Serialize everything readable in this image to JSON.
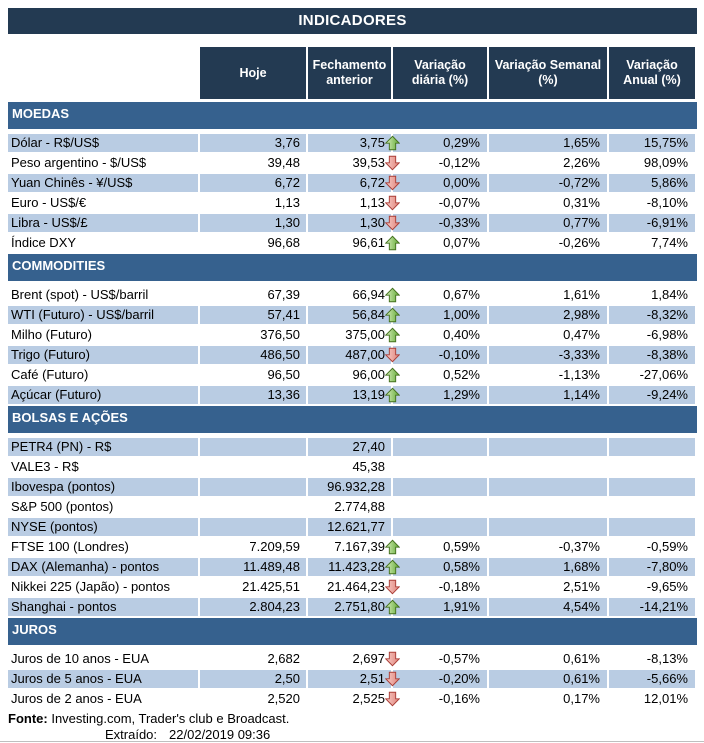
{
  "title": "INDICADORES",
  "columns": [
    "Hoje",
    "Fechamento anterior",
    "Variação diária (%)",
    "Variação Semanal (%)",
    "Variação Anual (%)"
  ],
  "colors": {
    "navy": "#233a52",
    "band": "#36618e",
    "row_light": "#b9cce3",
    "arrow_up_fill": "#8cc63e",
    "arrow_up_stroke": "#44711f",
    "arrow_down_fill": "#efa49d",
    "arrow_down_stroke": "#a93d36"
  },
  "sections": [
    {
      "name": "MOEDAS",
      "first_row_shaded": true,
      "rows": [
        {
          "label": "Dólar - R$/US$",
          "hoje": "3,76",
          "fechamento": "3,75",
          "arrow": "up",
          "var_diaria": "0,29%",
          "var_semanal": "1,65%",
          "var_anual": "15,75%"
        },
        {
          "label": "Peso argentino - $/US$",
          "hoje": "39,48",
          "fechamento": "39,53",
          "arrow": "down",
          "var_diaria": "-0,12%",
          "var_semanal": "2,26%",
          "var_anual": "98,09%"
        },
        {
          "label": "Yuan Chinês - ¥/US$",
          "hoje": "6,72",
          "fechamento": "6,72",
          "arrow": "down",
          "var_diaria": "0,00%",
          "var_semanal": "-0,72%",
          "var_anual": "5,86%"
        },
        {
          "label": "Euro - US$/€",
          "hoje": "1,13",
          "fechamento": "1,13",
          "arrow": "down",
          "var_diaria": "-0,07%",
          "var_semanal": "0,31%",
          "var_anual": "-8,10%"
        },
        {
          "label": "Libra - US$/£",
          "hoje": "1,30",
          "fechamento": "1,30",
          "arrow": "down",
          "var_diaria": "-0,33%",
          "var_semanal": "0,77%",
          "var_anual": "-6,91%"
        },
        {
          "label": "Índice DXY",
          "hoje": "96,68",
          "fechamento": "96,61",
          "arrow": "up",
          "var_diaria": "0,07%",
          "var_semanal": "-0,26%",
          "var_anual": "7,74%"
        }
      ]
    },
    {
      "name": "COMMODITIES",
      "first_row_shaded": false,
      "rows": [
        {
          "label": "Brent (spot) - US$/barril",
          "hoje": "67,39",
          "fechamento": "66,94",
          "arrow": "up",
          "var_diaria": "0,67%",
          "var_semanal": "1,61%",
          "var_anual": "1,84%"
        },
        {
          "label": "WTI (Futuro) - US$/barril",
          "hoje": "57,41",
          "fechamento": "56,84",
          "arrow": "up",
          "var_diaria": "1,00%",
          "var_semanal": "2,98%",
          "var_anual": "-8,32%"
        },
        {
          "label": "Milho (Futuro)",
          "hoje": "376,50",
          "fechamento": "375,00",
          "arrow": "up",
          "var_diaria": "0,40%",
          "var_semanal": "0,47%",
          "var_anual": "-6,98%"
        },
        {
          "label": "Trigo (Futuro)",
          "hoje": "486,50",
          "fechamento": "487,00",
          "arrow": "down",
          "var_diaria": "-0,10%",
          "var_semanal": "-3,33%",
          "var_anual": "-8,38%"
        },
        {
          "label": "Café (Futuro)",
          "hoje": "96,50",
          "fechamento": "96,00",
          "arrow": "up",
          "var_diaria": "0,52%",
          "var_semanal": "-1,13%",
          "var_anual": "-27,06%"
        },
        {
          "label": "Açúcar (Futuro)",
          "hoje": "13,36",
          "fechamento": "13,19",
          "arrow": "up",
          "var_diaria": "1,29%",
          "var_semanal": "1,14%",
          "var_anual": "-9,24%"
        }
      ]
    },
    {
      "name": "BOLSAS E AÇÕES",
      "first_row_shaded": true,
      "rows": [
        {
          "label": "PETR4 (PN) - R$",
          "hoje": "",
          "fechamento": "27,40",
          "arrow": null,
          "var_diaria": "",
          "var_semanal": "",
          "var_anual": ""
        },
        {
          "label": "VALE3 - R$",
          "hoje": "",
          "fechamento": "45,38",
          "arrow": null,
          "var_diaria": "",
          "var_semanal": "",
          "var_anual": ""
        },
        {
          "label": "Ibovespa (pontos)",
          "hoje": "",
          "fechamento": "96.932,28",
          "arrow": null,
          "var_diaria": "",
          "var_semanal": "",
          "var_anual": ""
        },
        {
          "label": "S&P 500 (pontos)",
          "hoje": "",
          "fechamento": "2.774,88",
          "arrow": null,
          "var_diaria": "",
          "var_semanal": "",
          "var_anual": ""
        },
        {
          "label": "NYSE (pontos)",
          "hoje": "",
          "fechamento": "12.621,77",
          "arrow": null,
          "var_diaria": "",
          "var_semanal": "",
          "var_anual": ""
        },
        {
          "label": "FTSE 100 (Londres)",
          "hoje": "7.209,59",
          "fechamento": "7.167,39",
          "arrow": "up",
          "var_diaria": "0,59%",
          "var_semanal": "-0,37%",
          "var_anual": "-0,59%"
        },
        {
          "label": "DAX (Alemanha) - pontos",
          "hoje": "11.489,48",
          "fechamento": "11.423,28",
          "arrow": "up",
          "var_diaria": "0,58%",
          "var_semanal": "1,68%",
          "var_anual": "-7,80%"
        },
        {
          "label": "Nikkei 225 (Japão) - pontos",
          "hoje": "21.425,51",
          "fechamento": "21.464,23",
          "arrow": "down",
          "var_diaria": "-0,18%",
          "var_semanal": "2,51%",
          "var_anual": "-9,65%"
        },
        {
          "label": "Shanghai - pontos",
          "hoje": "2.804,23",
          "fechamento": "2.751,80",
          "arrow": "up",
          "var_diaria": "1,91%",
          "var_semanal": "4,54%",
          "var_anual": "-14,21%"
        }
      ]
    },
    {
      "name": "JUROS",
      "first_row_shaded": false,
      "rows": [
        {
          "label": "Juros de 10 anos - EUA",
          "hoje": "2,682",
          "fechamento": "2,697",
          "arrow": "down",
          "var_diaria": "-0,57%",
          "var_semanal": "0,61%",
          "var_anual": "-8,13%"
        },
        {
          "label": "Juros de 5 anos - EUA",
          "hoje": "2,50",
          "fechamento": "2,51",
          "arrow": "down",
          "var_diaria": "-0,20%",
          "var_semanal": "0,61%",
          "var_anual": "-5,66%"
        },
        {
          "label": "Juros de 2 anos - EUA",
          "hoje": "2,520",
          "fechamento": "2,525",
          "arrow": "down",
          "var_diaria": "-0,16%",
          "var_semanal": "0,17%",
          "var_anual": "12,01%"
        }
      ]
    }
  ],
  "footer": {
    "fonte_label": "Fonte:",
    "fonte_text": " Investing.com, Trader's club e Broadcast.",
    "extraido_label": "Extraído:",
    "extraido_value": "22/02/2019 09:36"
  }
}
